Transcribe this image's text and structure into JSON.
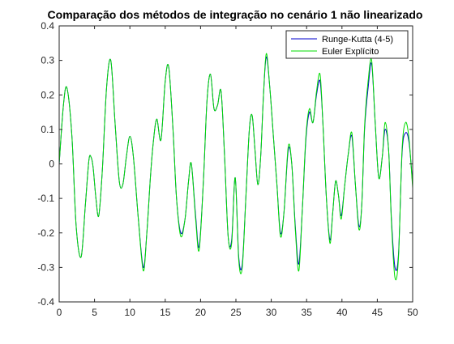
{
  "chart_data": {
    "type": "line",
    "title": "Comparação dos métodos de integração no cenário 1 não linearizado",
    "xlabel": "",
    "ylabel": "",
    "xlim": [
      0,
      50
    ],
    "ylim": [
      -0.4,
      0.4
    ],
    "xticks": [
      0,
      5,
      10,
      15,
      20,
      25,
      30,
      35,
      40,
      45,
      50
    ],
    "xtick_labels": [
      "0",
      "5",
      "10",
      "15",
      "20",
      "25",
      "30",
      "35",
      "40",
      "45",
      "50"
    ],
    "yticks": [
      -0.4,
      -0.3,
      -0.2,
      -0.1,
      0,
      0.1,
      0.2,
      0.3,
      0.4
    ],
    "ytick_labels": [
      "-0.4",
      "-0.3",
      "-0.2",
      "-0.1",
      "0",
      "0.1",
      "0.2",
      "0.3",
      "0.4"
    ],
    "grid": false,
    "legend_position": "top-right",
    "series": [
      {
        "name": "Runge-Kutta (4-5)",
        "color": "#0000cc",
        "x": [
          0,
          0.6,
          1.1,
          1.8,
          2.4,
          3.1,
          3.7,
          4.2,
          4.5,
          4.8,
          5.2,
          5.6,
          6.1,
          6.7,
          7.3,
          7.9,
          8.5,
          9.0,
          9.5,
          10.0,
          10.5,
          11.2,
          11.9,
          12.4,
          12.9,
          13.3,
          13.8,
          14.4,
          15.0,
          15.5,
          16.1,
          16.6,
          17.2,
          17.8,
          18.3,
          18.7,
          19.3,
          19.8,
          20.4,
          20.9,
          21.4,
          21.9,
          22.4,
          22.9,
          23.4,
          23.9,
          24.4,
          24.9,
          25.4,
          25.9,
          26.4,
          26.9,
          27.3,
          27.7,
          28.1,
          28.5,
          28.9,
          29.3,
          29.8,
          30.3,
          30.8,
          31.3,
          31.8,
          32.4,
          32.9,
          33.4,
          33.9,
          34.4,
          34.9,
          35.4,
          35.9,
          36.4,
          36.9,
          37.3,
          37.8,
          38.3,
          38.7,
          39.1,
          39.5,
          39.9,
          40.4,
          40.9,
          41.4,
          41.9,
          42.4,
          42.8,
          43.2,
          43.7,
          44.2,
          44.7,
          45.2,
          45.7,
          46.1,
          46.6,
          47.0,
          47.5,
          48.0,
          48.5,
          49.0,
          49.5,
          50.0
        ],
        "y": [
          0.0,
          0.17,
          0.22,
          0.08,
          -0.18,
          -0.27,
          -0.12,
          0.01,
          0.02,
          -0.01,
          -0.1,
          -0.15,
          -0.02,
          0.22,
          0.3,
          0.12,
          -0.05,
          -0.06,
          0.02,
          0.08,
          0.02,
          -0.16,
          -0.3,
          -0.2,
          -0.04,
          0.06,
          0.13,
          0.07,
          0.24,
          0.28,
          0.1,
          -0.1,
          -0.2,
          -0.16,
          -0.05,
          0.0,
          -0.15,
          -0.24,
          -0.05,
          0.18,
          0.26,
          0.16,
          0.17,
          0.21,
          0.02,
          -0.21,
          -0.22,
          -0.04,
          -0.27,
          -0.29,
          -0.1,
          0.1,
          0.14,
          0.04,
          -0.06,
          0.02,
          0.2,
          0.31,
          0.22,
          0.08,
          -0.06,
          -0.2,
          -0.14,
          0.04,
          0.0,
          -0.18,
          -0.29,
          -0.13,
          0.07,
          0.15,
          0.12,
          0.2,
          0.24,
          0.12,
          -0.1,
          -0.22,
          -0.14,
          -0.05,
          -0.09,
          -0.15,
          -0.06,
          0.03,
          0.08,
          -0.06,
          -0.18,
          -0.12,
          0.1,
          0.22,
          0.29,
          0.12,
          -0.04,
          0.02,
          0.1,
          0.04,
          -0.16,
          -0.3,
          -0.26,
          0.03,
          0.09,
          0.06,
          -0.06
        ]
      },
      {
        "name": "Euler Explícito",
        "color": "#00dd00",
        "x": [
          0,
          0.6,
          1.1,
          1.8,
          2.4,
          3.1,
          3.7,
          4.2,
          4.5,
          4.8,
          5.2,
          5.6,
          6.1,
          6.7,
          7.3,
          7.9,
          8.5,
          9.0,
          9.5,
          10.0,
          10.5,
          11.2,
          11.9,
          12.4,
          12.9,
          13.3,
          13.8,
          14.4,
          15.0,
          15.5,
          16.1,
          16.6,
          17.2,
          17.8,
          18.3,
          18.7,
          19.3,
          19.8,
          20.4,
          20.9,
          21.4,
          21.9,
          22.4,
          22.9,
          23.4,
          23.9,
          24.4,
          24.9,
          25.4,
          25.9,
          26.4,
          26.9,
          27.3,
          27.7,
          28.1,
          28.5,
          28.9,
          29.3,
          29.8,
          30.3,
          30.8,
          31.3,
          31.8,
          32.4,
          32.9,
          33.4,
          33.9,
          34.4,
          34.9,
          35.4,
          35.9,
          36.4,
          36.9,
          37.3,
          37.8,
          38.3,
          38.7,
          39.1,
          39.5,
          39.9,
          40.4,
          40.9,
          41.4,
          41.9,
          42.4,
          42.8,
          43.2,
          43.7,
          44.2,
          44.7,
          45.2,
          45.7,
          46.1,
          46.6,
          47.0,
          47.5,
          48.0,
          48.5,
          49.0,
          49.5,
          50.0
        ],
        "y": [
          0.0,
          0.17,
          0.22,
          0.08,
          -0.18,
          -0.27,
          -0.12,
          0.01,
          0.02,
          -0.01,
          -0.1,
          -0.15,
          -0.02,
          0.22,
          0.3,
          0.12,
          -0.05,
          -0.06,
          0.02,
          0.08,
          0.02,
          -0.16,
          -0.31,
          -0.2,
          -0.04,
          0.06,
          0.13,
          0.07,
          0.24,
          0.28,
          0.1,
          -0.1,
          -0.21,
          -0.16,
          -0.05,
          0.0,
          -0.16,
          -0.25,
          -0.05,
          0.18,
          0.26,
          0.16,
          0.17,
          0.21,
          0.02,
          -0.21,
          -0.23,
          -0.04,
          -0.28,
          -0.3,
          -0.1,
          0.1,
          0.14,
          0.04,
          -0.06,
          0.02,
          0.2,
          0.32,
          0.22,
          0.08,
          -0.06,
          -0.21,
          -0.14,
          0.05,
          0.0,
          -0.19,
          -0.31,
          -0.13,
          0.08,
          0.16,
          0.12,
          0.21,
          0.26,
          0.12,
          -0.1,
          -0.23,
          -0.14,
          -0.05,
          -0.09,
          -0.16,
          -0.06,
          0.03,
          0.09,
          -0.06,
          -0.19,
          -0.12,
          0.11,
          0.24,
          0.3,
          0.12,
          -0.04,
          0.02,
          0.12,
          0.04,
          -0.17,
          -0.33,
          -0.27,
          0.04,
          0.12,
          0.07,
          -0.07
        ]
      }
    ]
  }
}
